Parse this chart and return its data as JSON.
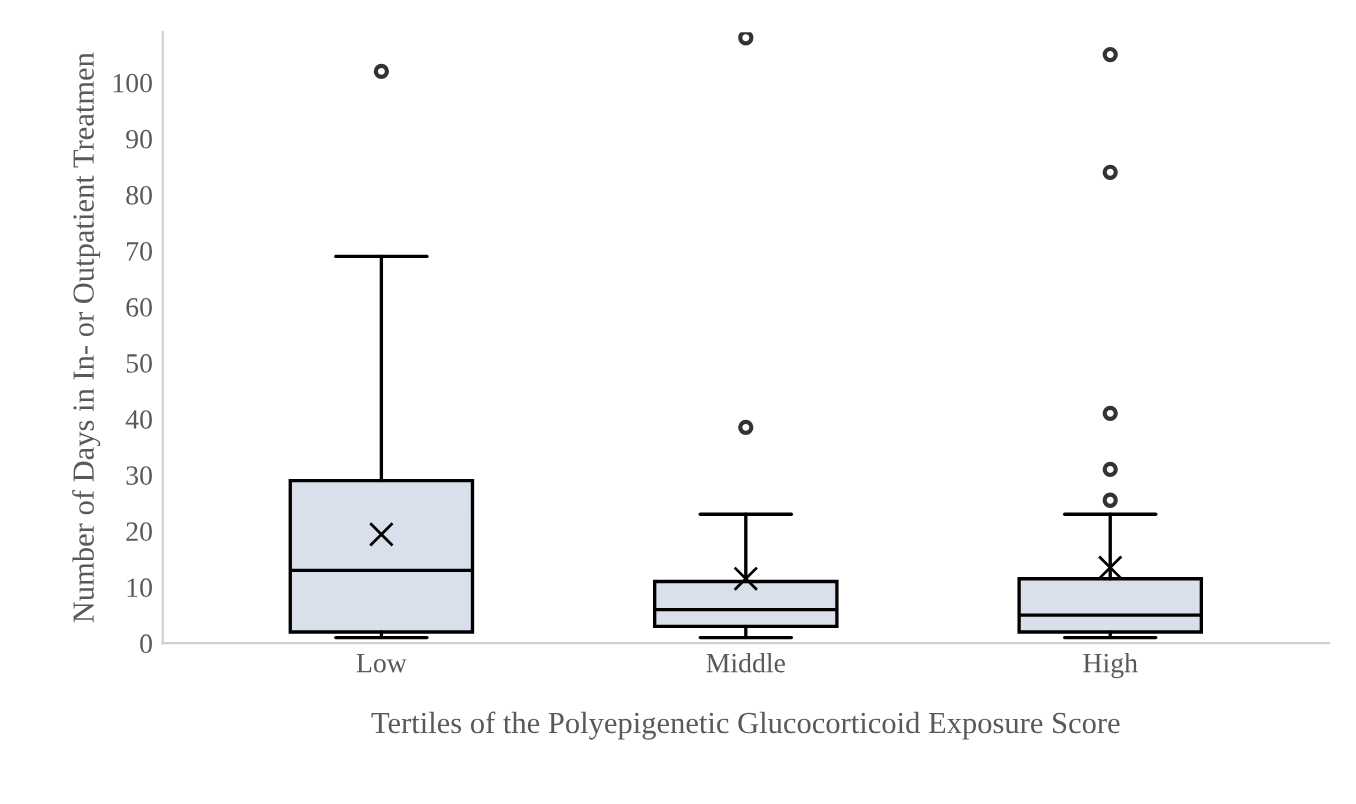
{
  "chart_data": {
    "type": "box",
    "xlabel": "Tertiles of the Polyepigenetic Glucocorticoid Exposure Score",
    "ylabel": "Number of Days in In- or Outpatient Treatmen",
    "categories": [
      "Low",
      "Middle",
      "High"
    ],
    "boxes": [
      {
        "low": 1,
        "q1": 2,
        "median": 13,
        "q3": 29,
        "high": 69,
        "mean": 19.4,
        "outliers": [
          102
        ]
      },
      {
        "low": 1,
        "q1": 3,
        "median": 6,
        "q3": 11,
        "high": 23,
        "mean": 11.5,
        "outliers": [
          38.5,
          108
        ]
      },
      {
        "low": 1,
        "q1": 2,
        "median": 5,
        "q3": 11.5,
        "high": 23,
        "mean": 13.5,
        "outliers": [
          25.5,
          31,
          41,
          84,
          105
        ]
      }
    ],
    "color": "#d9e0ec",
    "ylim": [
      0,
      109
    ],
    "yticks": [
      0,
      10,
      20,
      30,
      40,
      50,
      60,
      70,
      80,
      90,
      100
    ],
    "grid": false
  }
}
